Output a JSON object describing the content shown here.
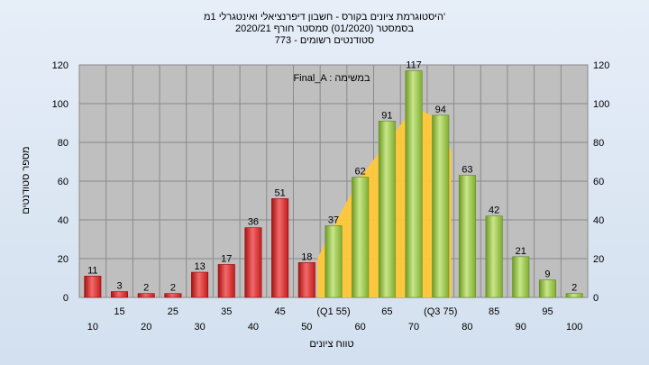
{
  "chart_data": {
    "type": "bar",
    "title_lines": [
      "היסטוגרמת ציונים בקורס - חשבון דיפרנציאלי ואינטגרלי 1מ'",
      "בסמסטר  (01/2020)  סמסטר חורף 2020/21",
      "סטודנטים רשומים - 773"
    ],
    "annotation": "Final_A : במשימה",
    "ylabel": "מספר סטודנטים",
    "xlabel": "טווח ציונים",
    "ylim": [
      0,
      120
    ],
    "yticks": [
      0,
      20,
      40,
      60,
      80,
      100,
      120
    ],
    "categories": [
      10,
      15,
      20,
      25,
      30,
      35,
      40,
      45,
      50,
      55,
      60,
      65,
      70,
      75,
      80,
      85,
      90,
      95,
      100
    ],
    "category_labels": [
      "10",
      "15",
      "20",
      "25",
      "30",
      "35",
      "40",
      "45",
      "50",
      "(Q1 55)",
      "60",
      "65",
      "70",
      "(Q3 75)",
      "80",
      "85",
      "90",
      "95",
      "100"
    ],
    "values": [
      11,
      3,
      2,
      2,
      13,
      17,
      36,
      51,
      18,
      37,
      62,
      91,
      117,
      94,
      63,
      42,
      21,
      9,
      2
    ],
    "bar_colors": [
      "#d42a2a",
      "#d42a2a",
      "#d42a2a",
      "#d42a2a",
      "#d42a2a",
      "#d42a2a",
      "#d42a2a",
      "#d42a2a",
      "#d42a2a",
      "#8cbf3a",
      "#8cbf3a",
      "#8cbf3a",
      "#8cbf3a",
      "#8cbf3a",
      "#8cbf3a",
      "#8cbf3a",
      "#8cbf3a",
      "#8cbf3a",
      "#8cbf3a"
    ],
    "normal_curve": {
      "x": [
        52,
        55,
        60,
        65,
        70,
        75,
        77
      ],
      "y": [
        20,
        37,
        62,
        80,
        98,
        92,
        75
      ],
      "color": "#ffc83a"
    },
    "grid": true,
    "plot_background": "#bfbfbf",
    "chart_background": "#dde7f3"
  }
}
